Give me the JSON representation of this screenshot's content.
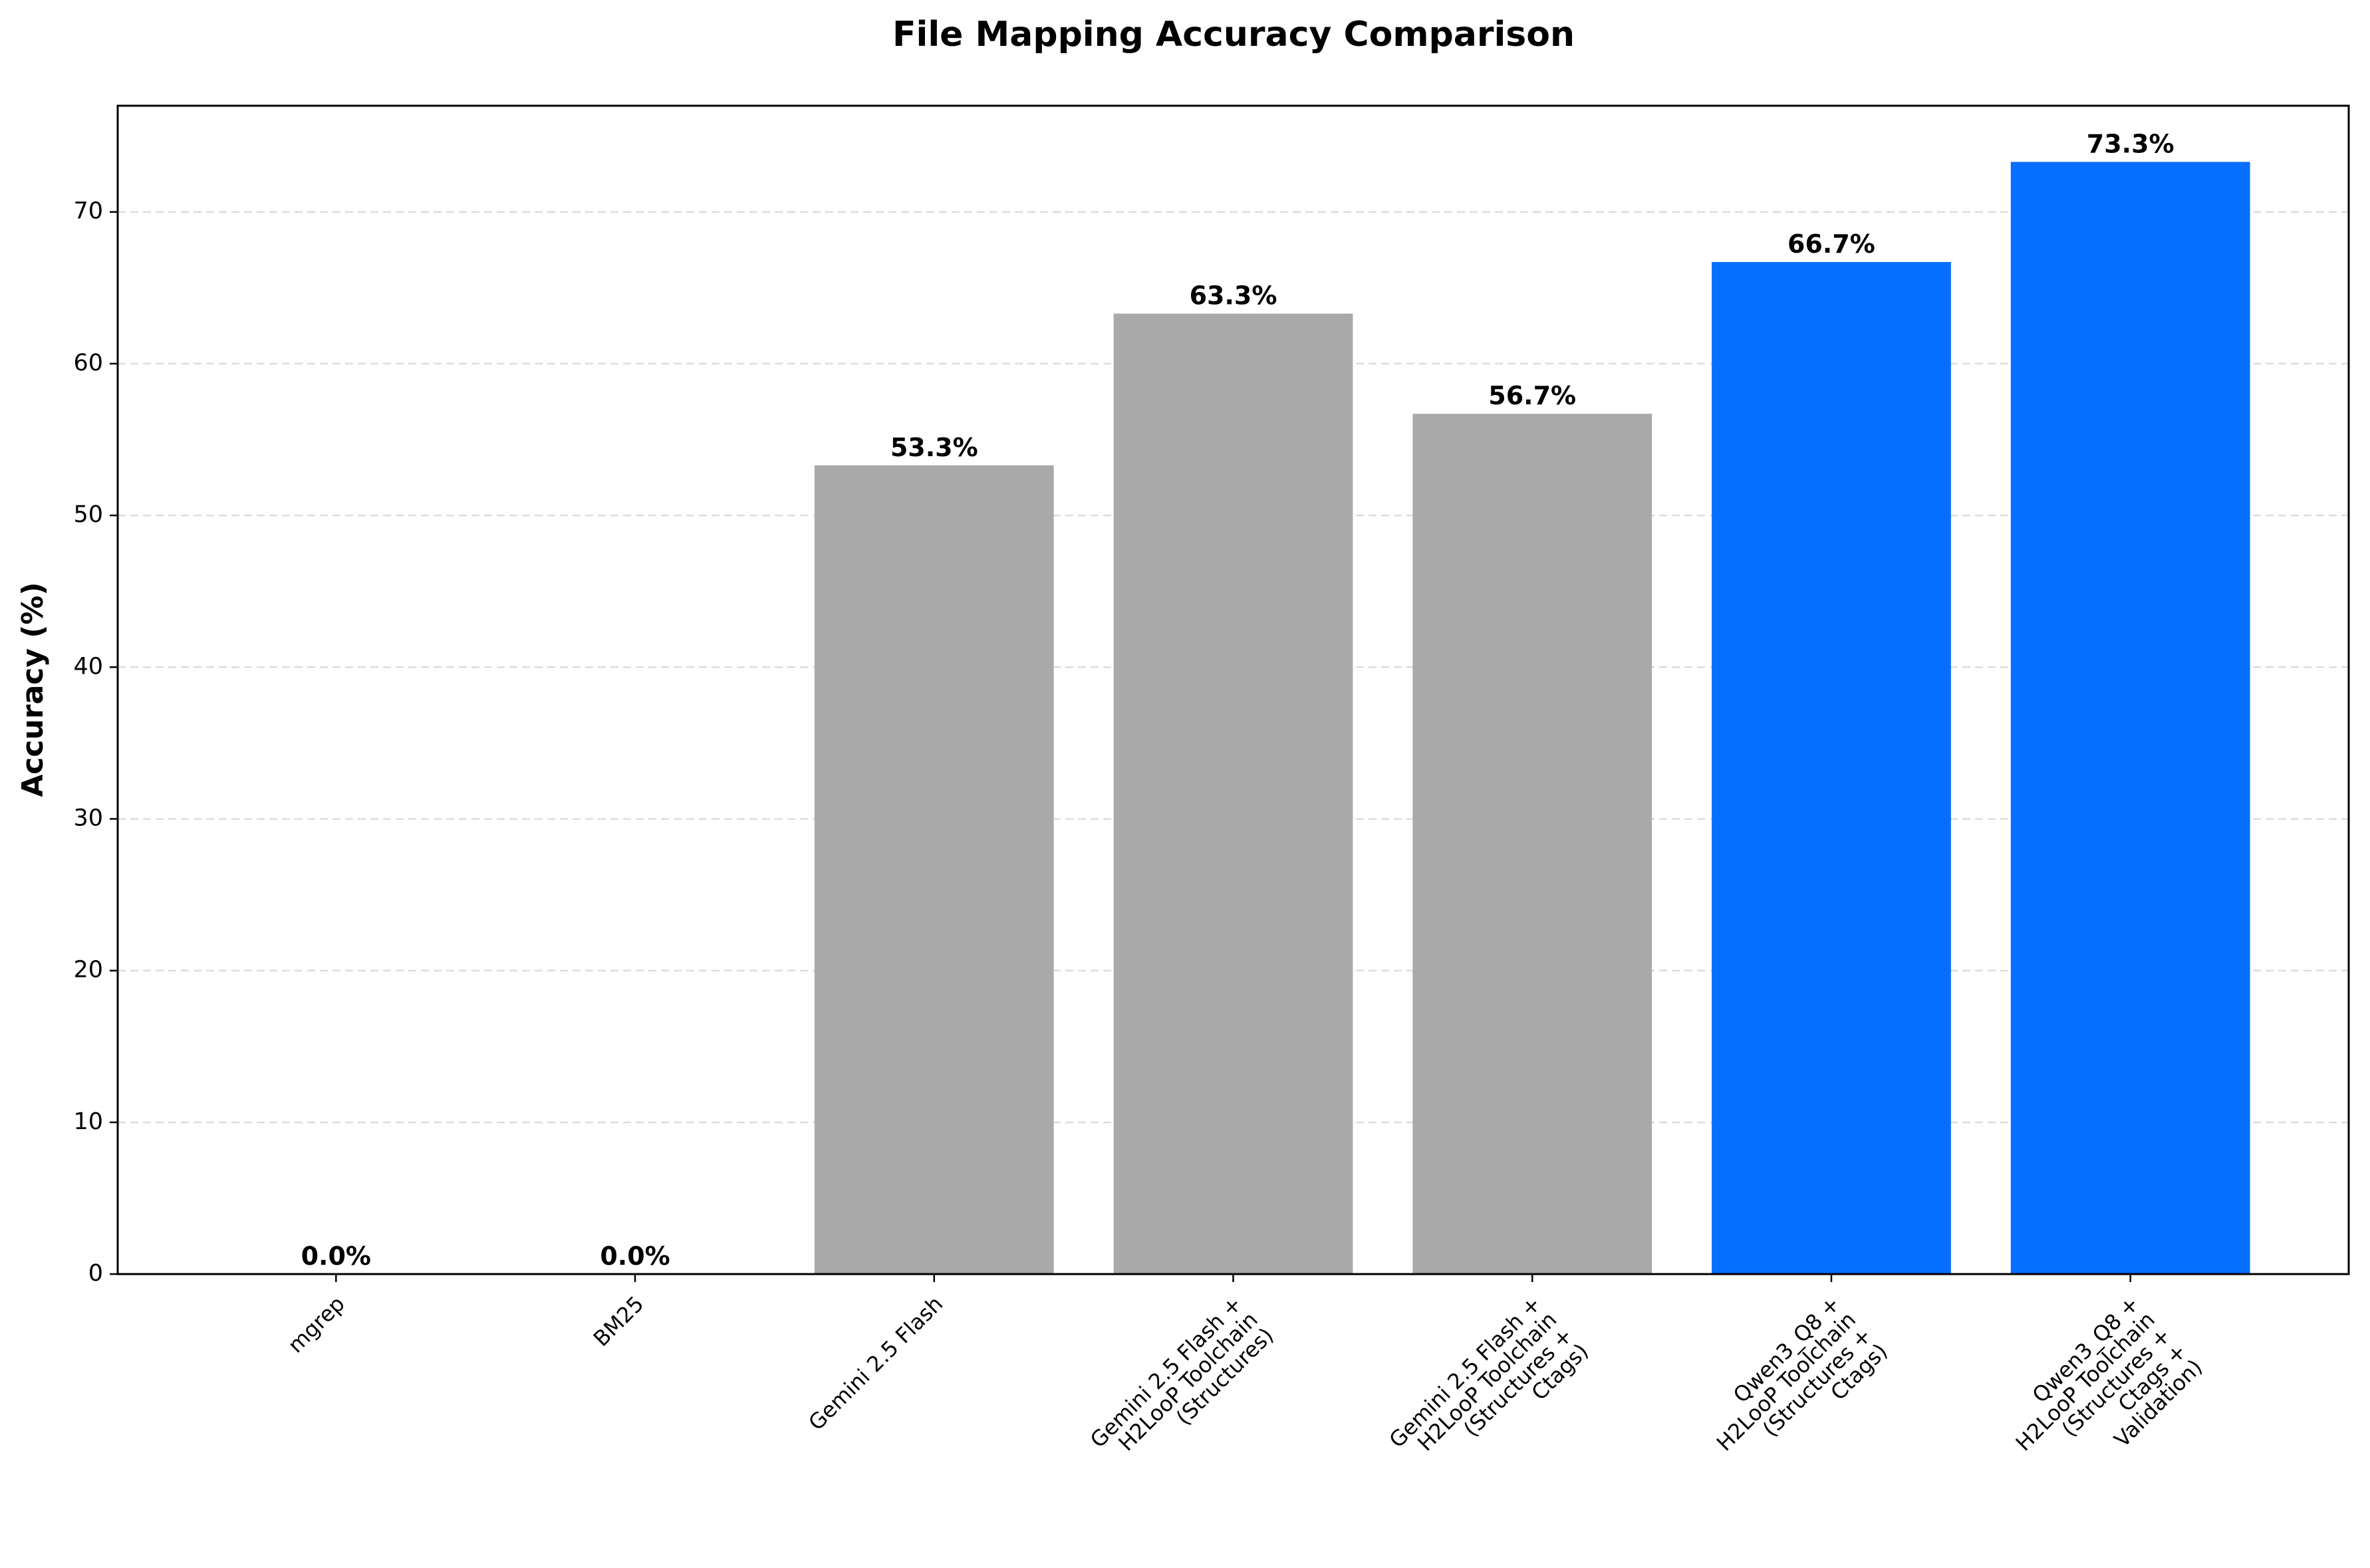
{
  "chart_data": {
    "type": "bar",
    "title": "File Mapping Accuracy Comparison",
    "y_label": "Accuracy (%)",
    "categories": [
      "mgrep",
      "BM25",
      "Gemini 2.5 Flash",
      "Gemini 2.5 Flash +\nH2LooP Toolchain\n(Structures)",
      "Gemini 2.5 Flash +\nH2LooP Toolchain\n(Structures +\nCtags)",
      "Qwen3_Q8 +\nH2LooP Toolchain\n(Structures +\nCtags)",
      "Qwen3_Q8 +\nH2LooP Toolchain\n(Structures +\nCtags +\nValidation)"
    ],
    "values": [
      0.0,
      0.0,
      53.3,
      63.3,
      56.7,
      66.7,
      73.3
    ],
    "value_labels": [
      "0.0%",
      "0.0%",
      "53.3%",
      "63.3%",
      "56.7%",
      "66.7%",
      "73.3%"
    ],
    "colors": [
      "#a9a9a9",
      "#a9a9a9",
      "#a9a9a9",
      "#a9a9a9",
      "#a9a9a9",
      "#066fff",
      "#066fff"
    ],
    "value_label_colors": [
      "#666666",
      "#666666",
      "#666666",
      "#666666",
      "#666666",
      "#1a6fe6",
      "#1a6fe6"
    ],
    "ylim": [
      0,
      77
    ],
    "yticks": [
      0,
      10,
      20,
      30,
      40,
      50,
      60,
      70
    ],
    "grid": true
  }
}
